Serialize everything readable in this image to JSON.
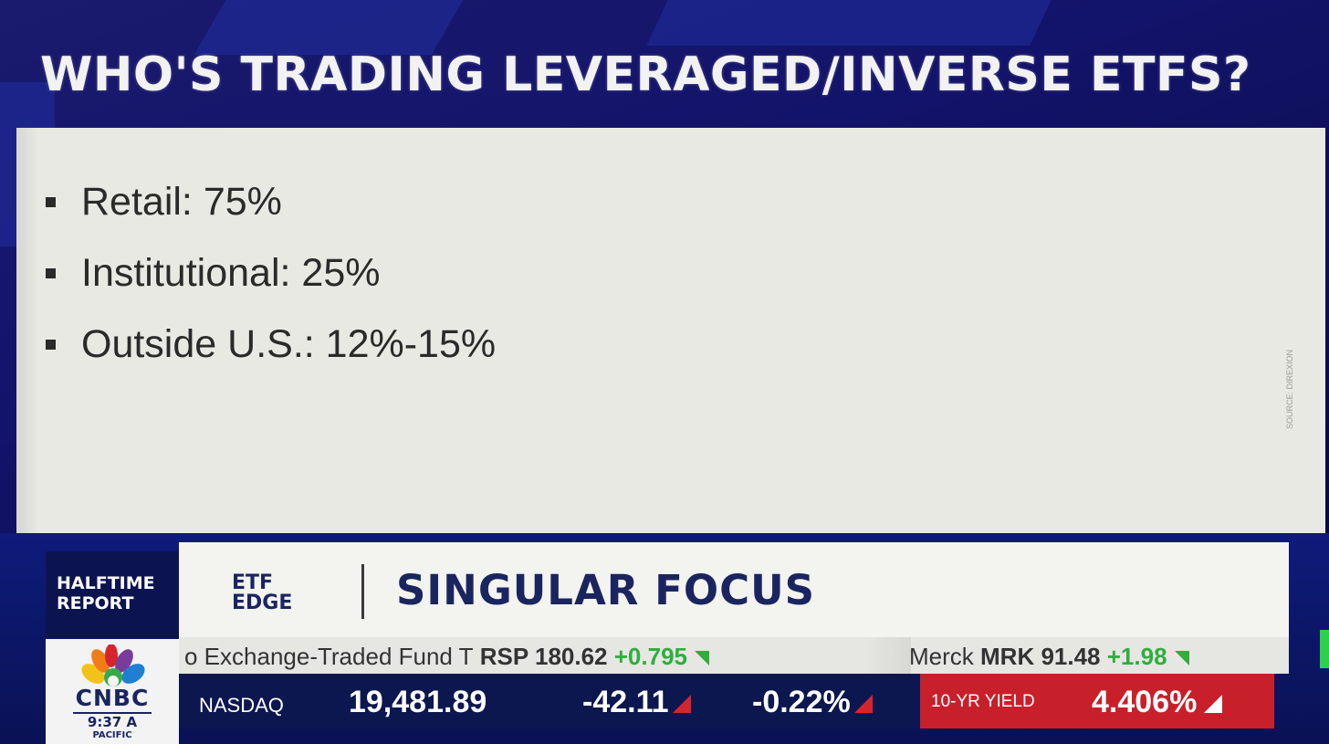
{
  "headline": "WHO'S TRADING LEVERAGED/INVERSE ETFS?",
  "bullets": [
    {
      "label": "Retail: 75%"
    },
    {
      "label": "Institutional: 25%"
    },
    {
      "label": "Outside U.S.: 12%-15%"
    }
  ],
  "source": "SOURCE: DIREXION",
  "show": {
    "name_line1": "HALFTIME",
    "name_line2": "REPORT",
    "segment_line1": "ETF",
    "segment_line2": "EDGE",
    "segment_title": "SINGULAR FOCUS"
  },
  "logo": {
    "text": "CNBC",
    "time": "9:37 A",
    "timezone": "PACIFIC"
  },
  "crawl": {
    "item1_name": "o Exchange-Traded Fund T",
    "item1_symbol_price": "RSP 180.62",
    "item1_change": "+0.795",
    "item2_name": "Merck",
    "item2_symbol_price": "MRK 91.48",
    "item2_change": "+1.98"
  },
  "ticker": {
    "index_name": "NASDAQ",
    "index_value": "19,481.89",
    "index_change": "-42.11",
    "index_percent": "-0.22%",
    "yield_label": "10-YR YIELD",
    "yield_value": "4.406%"
  },
  "colors": {
    "background": "#12136a",
    "panel": "#e9e9e3",
    "up": "#2fae3e",
    "down": "#d6242f",
    "yield_box": "#c8202b",
    "brand_navy": "#1a2560"
  }
}
